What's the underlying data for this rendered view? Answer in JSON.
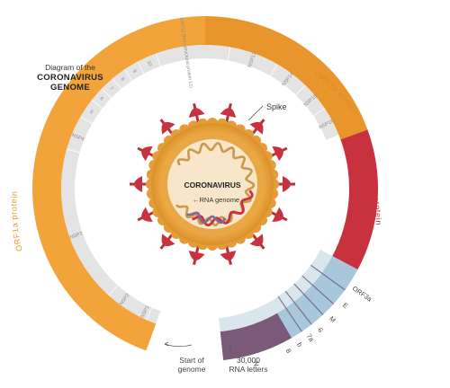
{
  "title": {
    "line1": "Diagram of the",
    "line2": "CORONAVIRUS",
    "line3": "GENOME"
  },
  "labels": {
    "orf1b": "ORF1b protein",
    "orf1a": "ORF1a protein",
    "spike_protein": "Spike protein",
    "spike": "Spike",
    "coronavirus": "CORONAVIRUS",
    "rna_genome": "RNA genome",
    "start_line1": "Start of",
    "start_line2": "genome",
    "end_line1": "30,000",
    "end_line2": "RNA letters"
  },
  "nsp_labels": [
    "NSP1",
    "NSP2",
    "NSP3",
    "NSP4",
    "5",
    "6",
    "7",
    "8",
    "9",
    "10",
    "NSP12 (Non-structural protein 12)",
    "NSP13",
    "NSP14",
    "NSP15",
    "NSP16"
  ],
  "small_genes": [
    "ORF3a",
    "E",
    "M",
    "6",
    "7a",
    "b",
    "8",
    "N"
  ],
  "colors": {
    "orf1a": "#f2a33a",
    "orf1b": "#e8962c",
    "spike": "#c8323f",
    "inner_gray": "#e4e4e4",
    "accessory_blue": "#a9c7da",
    "n_purple": "#7a5a78",
    "virus_shell": "#f1b44c",
    "virus_core": "#f7e6c9"
  }
}
